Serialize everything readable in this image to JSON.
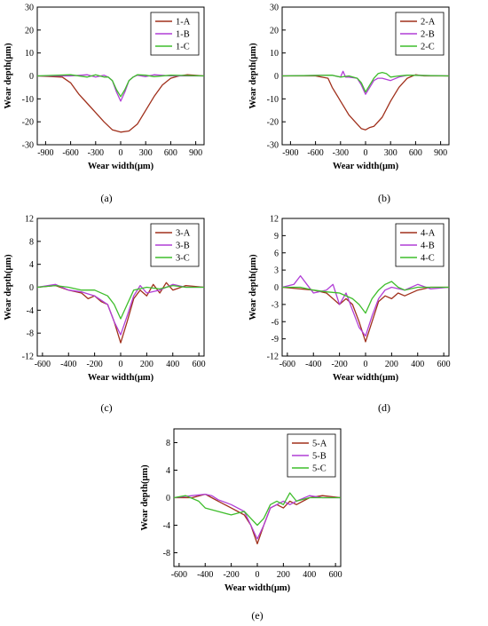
{
  "series_colors": {
    "A": "#a0301c",
    "B": "#b13fd6",
    "C": "#3ebd2b"
  },
  "chart_data": [
    {
      "type": "line",
      "caption": "(a)",
      "xlabel": "Wear width(μm)",
      "ylabel": "Wear depth(μm)",
      "xlim": [
        -1000,
        1000
      ],
      "ylim": [
        -30,
        30
      ],
      "xticks": [
        -900,
        -600,
        -300,
        0,
        300,
        600,
        900
      ],
      "yticks": [
        -30,
        -20,
        -10,
        0,
        10,
        20,
        30
      ],
      "legend": "top-right",
      "series": [
        {
          "name": "1-A",
          "x": [
            -1000,
            -700,
            -600,
            -500,
            -400,
            -300,
            -200,
            -100,
            0,
            100,
            200,
            300,
            400,
            500,
            600,
            700,
            800,
            1000
          ],
          "y": [
            0,
            -0.5,
            -3,
            -8,
            -12,
            -16,
            -20,
            -23.5,
            -24.5,
            -24,
            -21,
            -15,
            -9,
            -4,
            -1,
            0,
            0.5,
            0
          ]
        },
        {
          "name": "1-B",
          "x": [
            -1000,
            -600,
            -400,
            -300,
            -200,
            -150,
            -100,
            -50,
            0,
            50,
            100,
            150,
            200,
            300,
            400,
            600,
            1000
          ],
          "y": [
            0,
            0,
            0.5,
            -0.5,
            0.3,
            -0.5,
            -2,
            -7,
            -11,
            -7,
            -2,
            -0.5,
            0.3,
            -0.3,
            0.5,
            0,
            0
          ]
        },
        {
          "name": "1-C",
          "x": [
            -1000,
            -600,
            -400,
            -300,
            -200,
            -150,
            -100,
            -50,
            0,
            50,
            100,
            150,
            200,
            300,
            400,
            600,
            1000
          ],
          "y": [
            0,
            0.5,
            -0.5,
            0.5,
            -0.5,
            -0.5,
            -2,
            -6,
            -9,
            -6,
            -2,
            -0.5,
            0.5,
            0.3,
            -0.3,
            0.3,
            0
          ]
        }
      ]
    },
    {
      "type": "line",
      "caption": "(b)",
      "xlabel": "Wear width(μm)",
      "ylabel": "Wear depth(μm)",
      "xlim": [
        -1000,
        1000
      ],
      "ylim": [
        -30,
        30
      ],
      "xticks": [
        -900,
        -600,
        -300,
        0,
        300,
        600,
        900
      ],
      "yticks": [
        -30,
        -20,
        -10,
        0,
        10,
        20,
        30
      ],
      "legend": "top-right",
      "series": [
        {
          "name": "2-A",
          "x": [
            -1000,
            -600,
            -450,
            -400,
            -300,
            -200,
            -100,
            -50,
            0,
            50,
            100,
            200,
            300,
            400,
            500,
            600,
            700,
            1000
          ],
          "y": [
            0,
            0,
            -1,
            -5,
            -11,
            -17,
            -21,
            -23,
            -23.5,
            -22.5,
            -22,
            -18,
            -11,
            -5,
            -1,
            0.5,
            0,
            0
          ]
        },
        {
          "name": "2-B",
          "x": [
            -1000,
            -400,
            -300,
            -270,
            -240,
            -200,
            -100,
            -50,
            0,
            50,
            100,
            150,
            200,
            300,
            400,
            500,
            1000
          ],
          "y": [
            0,
            0.3,
            -0.5,
            2,
            -0.5,
            -0.5,
            -1,
            -4,
            -8,
            -5,
            -2,
            -1,
            -1,
            -2,
            -0.5,
            0.3,
            0
          ]
        },
        {
          "name": "2-C",
          "x": [
            -1000,
            -400,
            -300,
            -200,
            -100,
            -50,
            0,
            50,
            100,
            150,
            200,
            250,
            300,
            400,
            500,
            1000
          ],
          "y": [
            0,
            0.3,
            -0.5,
            0,
            -1,
            -3,
            -7,
            -4,
            -1,
            1,
            1.5,
            1,
            -0.5,
            0,
            0.3,
            0
          ]
        }
      ]
    },
    {
      "type": "line",
      "caption": "(c)",
      "xlabel": "Wear width(μm)",
      "ylabel": "Wear depth(μm)",
      "xlim": [
        -640,
        640
      ],
      "ylim": [
        -12,
        12
      ],
      "xticks": [
        -600,
        -400,
        -200,
        0,
        200,
        400,
        600
      ],
      "yticks": [
        -12,
        -8,
        -4,
        0,
        4,
        8,
        12
      ],
      "legend": "top-right",
      "series": [
        {
          "name": "3-A",
          "x": [
            -640,
            -500,
            -400,
            -300,
            -250,
            -200,
            -150,
            -100,
            -50,
            0,
            50,
            100,
            150,
            200,
            250,
            300,
            350,
            400,
            500,
            640
          ],
          "y": [
            0,
            0.3,
            -0.5,
            -1,
            -2,
            -1.5,
            -2.5,
            -3,
            -6,
            -9.7,
            -6,
            -2,
            -0.5,
            -1.5,
            0.5,
            -1,
            0.8,
            -0.5,
            0.3,
            0
          ]
        },
        {
          "name": "3-B",
          "x": [
            -640,
            -500,
            -400,
            -300,
            -200,
            -100,
            -50,
            0,
            50,
            100,
            150,
            200,
            300,
            400,
            500,
            640
          ],
          "y": [
            0,
            0.5,
            -0.5,
            -0.8,
            -1.5,
            -3,
            -6,
            -8.3,
            -5,
            -1.5,
            0.3,
            -1,
            -0.5,
            0.5,
            0,
            0
          ]
        },
        {
          "name": "3-C",
          "x": [
            -640,
            -500,
            -400,
            -300,
            -200,
            -100,
            -50,
            0,
            50,
            100,
            200,
            300,
            400,
            500,
            640
          ],
          "y": [
            0,
            0.3,
            0,
            -0.5,
            -0.5,
            -1.5,
            -3,
            -5.5,
            -3,
            -0.5,
            0,
            -0.3,
            0.3,
            0,
            0
          ]
        }
      ]
    },
    {
      "type": "line",
      "caption": "(d)",
      "xlabel": "Wear width(μm)",
      "ylabel": "Wear depth(μm)",
      "xlim": [
        -640,
        640
      ],
      "ylim": [
        -12,
        12
      ],
      "xticks": [
        -600,
        -400,
        -200,
        0,
        200,
        400,
        600
      ],
      "yticks": [
        -12,
        -9,
        -6,
        -3,
        0,
        3,
        6,
        9,
        12
      ],
      "legend": "top-right",
      "series": [
        {
          "name": "4-A",
          "x": [
            -640,
            -500,
            -400,
            -300,
            -250,
            -200,
            -150,
            -100,
            -50,
            0,
            50,
            100,
            150,
            200,
            250,
            300,
            400,
            500,
            640
          ],
          "y": [
            0,
            -0.3,
            -0.5,
            -1,
            -2,
            -3,
            -2,
            -3,
            -6,
            -9.5,
            -6,
            -2.5,
            -1.5,
            -2,
            -1,
            -1.5,
            -0.5,
            0,
            0
          ]
        },
        {
          "name": "4-B",
          "x": [
            -640,
            -550,
            -500,
            -450,
            -400,
            -300,
            -250,
            -200,
            -150,
            -100,
            -50,
            0,
            50,
            100,
            150,
            200,
            300,
            400,
            500,
            640
          ],
          "y": [
            0,
            0.5,
            2,
            0.5,
            -1,
            -0.5,
            0.5,
            -3,
            -1,
            -4,
            -7,
            -8.5,
            -5,
            -2,
            -0.5,
            0,
            -0.5,
            0.5,
            -0.3,
            0
          ]
        },
        {
          "name": "4-C",
          "x": [
            -640,
            -500,
            -400,
            -300,
            -200,
            -100,
            -50,
            0,
            50,
            100,
            150,
            200,
            250,
            300,
            400,
            500,
            640
          ],
          "y": [
            0,
            0,
            -0.5,
            -0.8,
            -1,
            -2,
            -3,
            -4.5,
            -2,
            -0.5,
            0.5,
            1,
            0,
            -0.5,
            0,
            0,
            0
          ]
        }
      ]
    },
    {
      "type": "line",
      "caption": "(e)",
      "xlabel": "Wear width(μm)",
      "ylabel": "Wear depth(μm)",
      "xlim": [
        -640,
        640
      ],
      "ylim": [
        -10,
        10
      ],
      "xticks": [
        -600,
        -400,
        -200,
        0,
        200,
        400,
        600
      ],
      "yticks": [
        -8,
        -4,
        0,
        4,
        8
      ],
      "legend": "top-right",
      "series": [
        {
          "name": "5-A",
          "x": [
            -640,
            -500,
            -400,
            -350,
            -300,
            -250,
            -200,
            -150,
            -100,
            -50,
            0,
            50,
            100,
            150,
            200,
            250,
            300,
            400,
            500,
            640
          ],
          "y": [
            0,
            0,
            0.5,
            0,
            -0.5,
            -1,
            -1.5,
            -2,
            -2.5,
            -4,
            -6.7,
            -4,
            -1.5,
            -1,
            -1.5,
            -0.5,
            -1,
            0,
            0.3,
            0
          ]
        },
        {
          "name": "5-B",
          "x": [
            -640,
            -500,
            -400,
            -350,
            -300,
            -200,
            -100,
            -50,
            0,
            50,
            100,
            200,
            250,
            300,
            400,
            500,
            640
          ],
          "y": [
            0,
            0.3,
            0.5,
            0.3,
            -0.3,
            -1,
            -2,
            -4,
            -6,
            -4,
            -1.5,
            -0.5,
            -1,
            -0.5,
            0.3,
            0,
            0
          ]
        },
        {
          "name": "5-C",
          "x": [
            -640,
            -550,
            -450,
            -400,
            -300,
            -200,
            -100,
            -50,
            0,
            50,
            100,
            150,
            200,
            250,
            300,
            400,
            640
          ],
          "y": [
            0,
            0.3,
            -0.5,
            -1.5,
            -2,
            -2.5,
            -2,
            -3,
            -4,
            -3,
            -1,
            -0.5,
            -1,
            0.7,
            -0.5,
            0,
            0
          ]
        }
      ]
    }
  ]
}
